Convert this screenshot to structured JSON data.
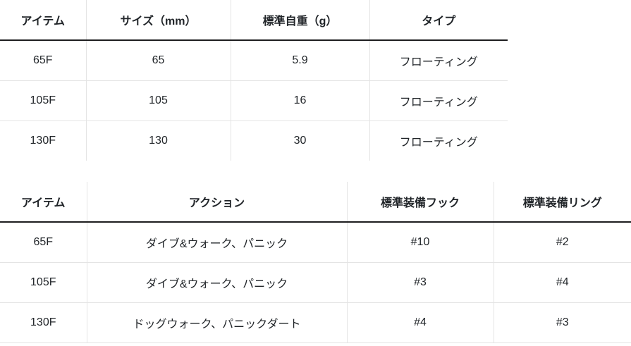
{
  "colors": {
    "background": "#ffffff",
    "text": "#212529",
    "header_underline": "#1d1d1f",
    "cell_border": "#e4e4e4"
  },
  "tables": [
    {
      "name": "size-spec-table",
      "headers": [
        "アイテム",
        "サイズ（mm）",
        "標準自重（g）",
        "タイプ"
      ],
      "rows": [
        [
          "65F",
          "65",
          "5.9",
          "フローティング"
        ],
        [
          "105F",
          "105",
          "16",
          "フローティング"
        ],
        [
          "130F",
          "130",
          "30",
          "フローティング"
        ]
      ]
    },
    {
      "name": "action-spec-table",
      "headers": [
        "アイテム",
        "アクション",
        "標準装備フック",
        "標準装備リング"
      ],
      "rows": [
        [
          "65F",
          "ダイブ&ウォーク、パニック",
          "#10",
          "#2"
        ],
        [
          "105F",
          "ダイブ&ウォーク、パニック",
          "#3",
          "#4"
        ],
        [
          "130F",
          "ドッグウォーク、パニックダート",
          "#4",
          "#3"
        ]
      ]
    }
  ]
}
